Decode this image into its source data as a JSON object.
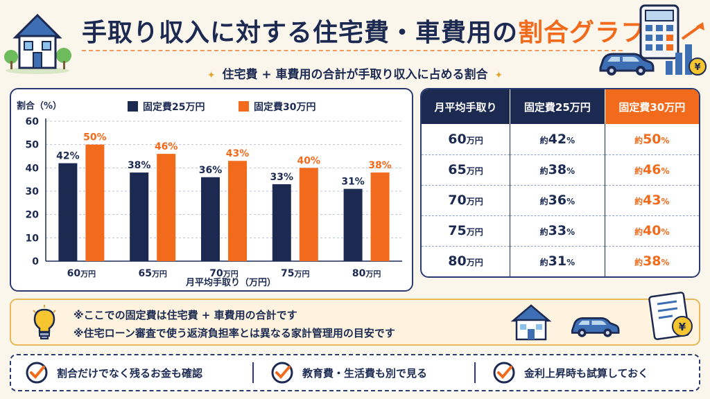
{
  "header": {
    "title_main": "手取り収入に対する住宅費・車費用の",
    "title_accent": "割合グラフ",
    "subtitle": "住宅費 + 車費用の合計が手取り収入に占める割合"
  },
  "chart_data": {
    "type": "bar",
    "ylabel": "割合（%）",
    "xlabel": "月平均手取り（万円）",
    "categories": [
      "60万円",
      "65万円",
      "70万円",
      "75万円",
      "80万円"
    ],
    "category_values": [
      "60",
      "65",
      "70",
      "75",
      "80"
    ],
    "category_unit": "万円",
    "ylim": [
      0,
      60
    ],
    "yticks": [
      "0",
      "10",
      "20",
      "30",
      "40",
      "50",
      "60"
    ],
    "grid": true,
    "legend_position": "top",
    "series": [
      {
        "name": "固定費25万円",
        "color": "#1c2a52",
        "values": [
          42,
          38,
          36,
          33,
          31
        ],
        "labels": [
          "42%",
          "38%",
          "36%",
          "33%",
          "31%"
        ]
      },
      {
        "name": "固定費30万円",
        "color": "#f26a1b",
        "values": [
          50,
          46,
          43,
          40,
          38
        ],
        "labels": [
          "50%",
          "46%",
          "43%",
          "40%",
          "38%"
        ]
      }
    ]
  },
  "table": {
    "headers": [
      "月平均手取り",
      "固定費25万円",
      "固定費30万円"
    ],
    "rows": [
      {
        "income": "60",
        "unit": "万円",
        "prefix": "約",
        "v25": "42",
        "v30": "50",
        "pct": "%"
      },
      {
        "income": "65",
        "unit": "万円",
        "prefix": "約",
        "v25": "38",
        "v30": "46",
        "pct": "%"
      },
      {
        "income": "70",
        "unit": "万円",
        "prefix": "約",
        "v25": "36",
        "v30": "43",
        "pct": "%"
      },
      {
        "income": "75",
        "unit": "万円",
        "prefix": "約",
        "v25": "33",
        "v30": "40",
        "pct": "%"
      },
      {
        "income": "80",
        "unit": "万円",
        "prefix": "約",
        "v25": "31",
        "v30": "38",
        "pct": "%"
      }
    ]
  },
  "notes": [
    "※ここでの固定費は住宅費 + 車費用の合計です",
    "※住宅ローン審査で使う返済負担率とは異なる家計管理用の目安です"
  ],
  "tips": [
    "割合だけでなく残るお金も確認",
    "教育費・生活費も別で見る",
    "金利上昇時も試算しておく"
  ],
  "colors": {
    "navy": "#1c2a52",
    "orange": "#f26a1b",
    "cream": "#fbf6ec"
  },
  "icons": [
    "house-icon",
    "calculator-icon",
    "car-icon",
    "bar-growth-icon",
    "lightbulb-icon",
    "checklist-yen-icon",
    "check-circle-icon"
  ]
}
